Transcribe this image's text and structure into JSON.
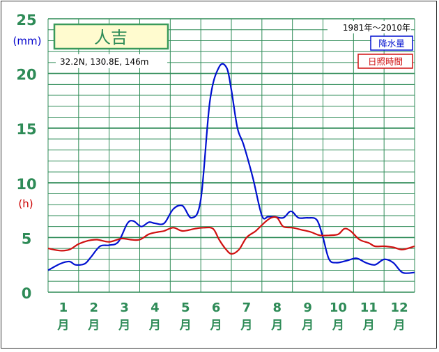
{
  "chart_data": {
    "type": "line",
    "station": "人吉",
    "location": "32.2N,  130.8E,  146m",
    "period": "1981年〜2010年",
    "y_unit_precip": "(mm)",
    "y_unit_sun": "(h)",
    "ylim": [
      0,
      25
    ],
    "yticks": [
      "0",
      "5",
      "10",
      "15",
      "20",
      "25"
    ],
    "xlim": [
      0.5,
      12.5
    ],
    "month_numbers": [
      "1",
      "2",
      "3",
      "4",
      "5",
      "6",
      "7",
      "8",
      "9",
      "10",
      "11",
      "12"
    ],
    "month_suffix": "月",
    "grid": true,
    "legend_position": "top-right",
    "colors": {
      "precip": "#0010d0",
      "sun": "#d01010",
      "grid": "#2e8b57",
      "axis_text": "#2e8b57",
      "unit_mm": "#0000cc",
      "unit_h": "#cc0000",
      "title_box_border": "#3a9a5a",
      "title_box_fill": "#fffbcf"
    },
    "series": [
      {
        "name": "降水量",
        "key": "precip",
        "x": [
          0.5,
          0.9,
          1.2,
          1.4,
          1.7,
          1.9,
          2.2,
          2.5,
          2.8,
          3.1,
          3.3,
          3.55,
          3.8,
          4.0,
          4.3,
          4.6,
          4.9,
          5.2,
          5.5,
          5.8,
          6.1,
          6.35,
          6.5,
          6.7,
          6.9,
          7.2,
          7.5,
          7.7,
          7.9,
          8.2,
          8.45,
          8.7,
          9.0,
          9.3,
          9.5,
          9.7,
          9.95,
          10.3,
          10.6,
          10.9,
          11.2,
          11.5,
          11.8,
          12.1,
          12.5
        ],
        "values": [
          2.0,
          2.6,
          2.8,
          2.5,
          2.6,
          3.2,
          4.2,
          4.3,
          4.6,
          6.3,
          6.5,
          6.0,
          6.4,
          6.3,
          6.3,
          7.6,
          7.9,
          6.8,
          8.5,
          17.5,
          20.6,
          20.5,
          18.5,
          15.0,
          13.5,
          10.5,
          7.0,
          6.9,
          6.9,
          6.8,
          7.4,
          6.8,
          6.8,
          6.6,
          5.0,
          3.0,
          2.7,
          2.9,
          3.1,
          2.7,
          2.5,
          3.0,
          2.7,
          1.8,
          1.8
        ]
      },
      {
        "name": "日照時間",
        "key": "sun",
        "x": [
          0.5,
          0.9,
          1.2,
          1.5,
          1.8,
          2.1,
          2.5,
          2.9,
          3.2,
          3.5,
          3.8,
          4.1,
          4.3,
          4.6,
          4.9,
          5.3,
          5.6,
          5.9,
          6.1,
          6.3,
          6.5,
          6.75,
          7.0,
          7.3,
          7.6,
          7.8,
          8.0,
          8.2,
          8.5,
          8.8,
          9.1,
          9.4,
          9.7,
          10.0,
          10.2,
          10.4,
          10.7,
          11.0,
          11.2,
          11.5,
          11.8,
          12.1,
          12.5
        ],
        "values": [
          4.0,
          3.8,
          3.9,
          4.4,
          4.7,
          4.8,
          4.6,
          4.9,
          4.8,
          4.8,
          5.3,
          5.5,
          5.6,
          5.9,
          5.6,
          5.8,
          5.9,
          5.8,
          4.8,
          4.0,
          3.5,
          3.9,
          5.0,
          5.6,
          6.4,
          6.8,
          6.8,
          6.0,
          5.9,
          5.7,
          5.5,
          5.2,
          5.2,
          5.3,
          5.8,
          5.6,
          4.8,
          4.5,
          4.2,
          4.2,
          4.1,
          3.9,
          4.2
        ]
      }
    ]
  }
}
